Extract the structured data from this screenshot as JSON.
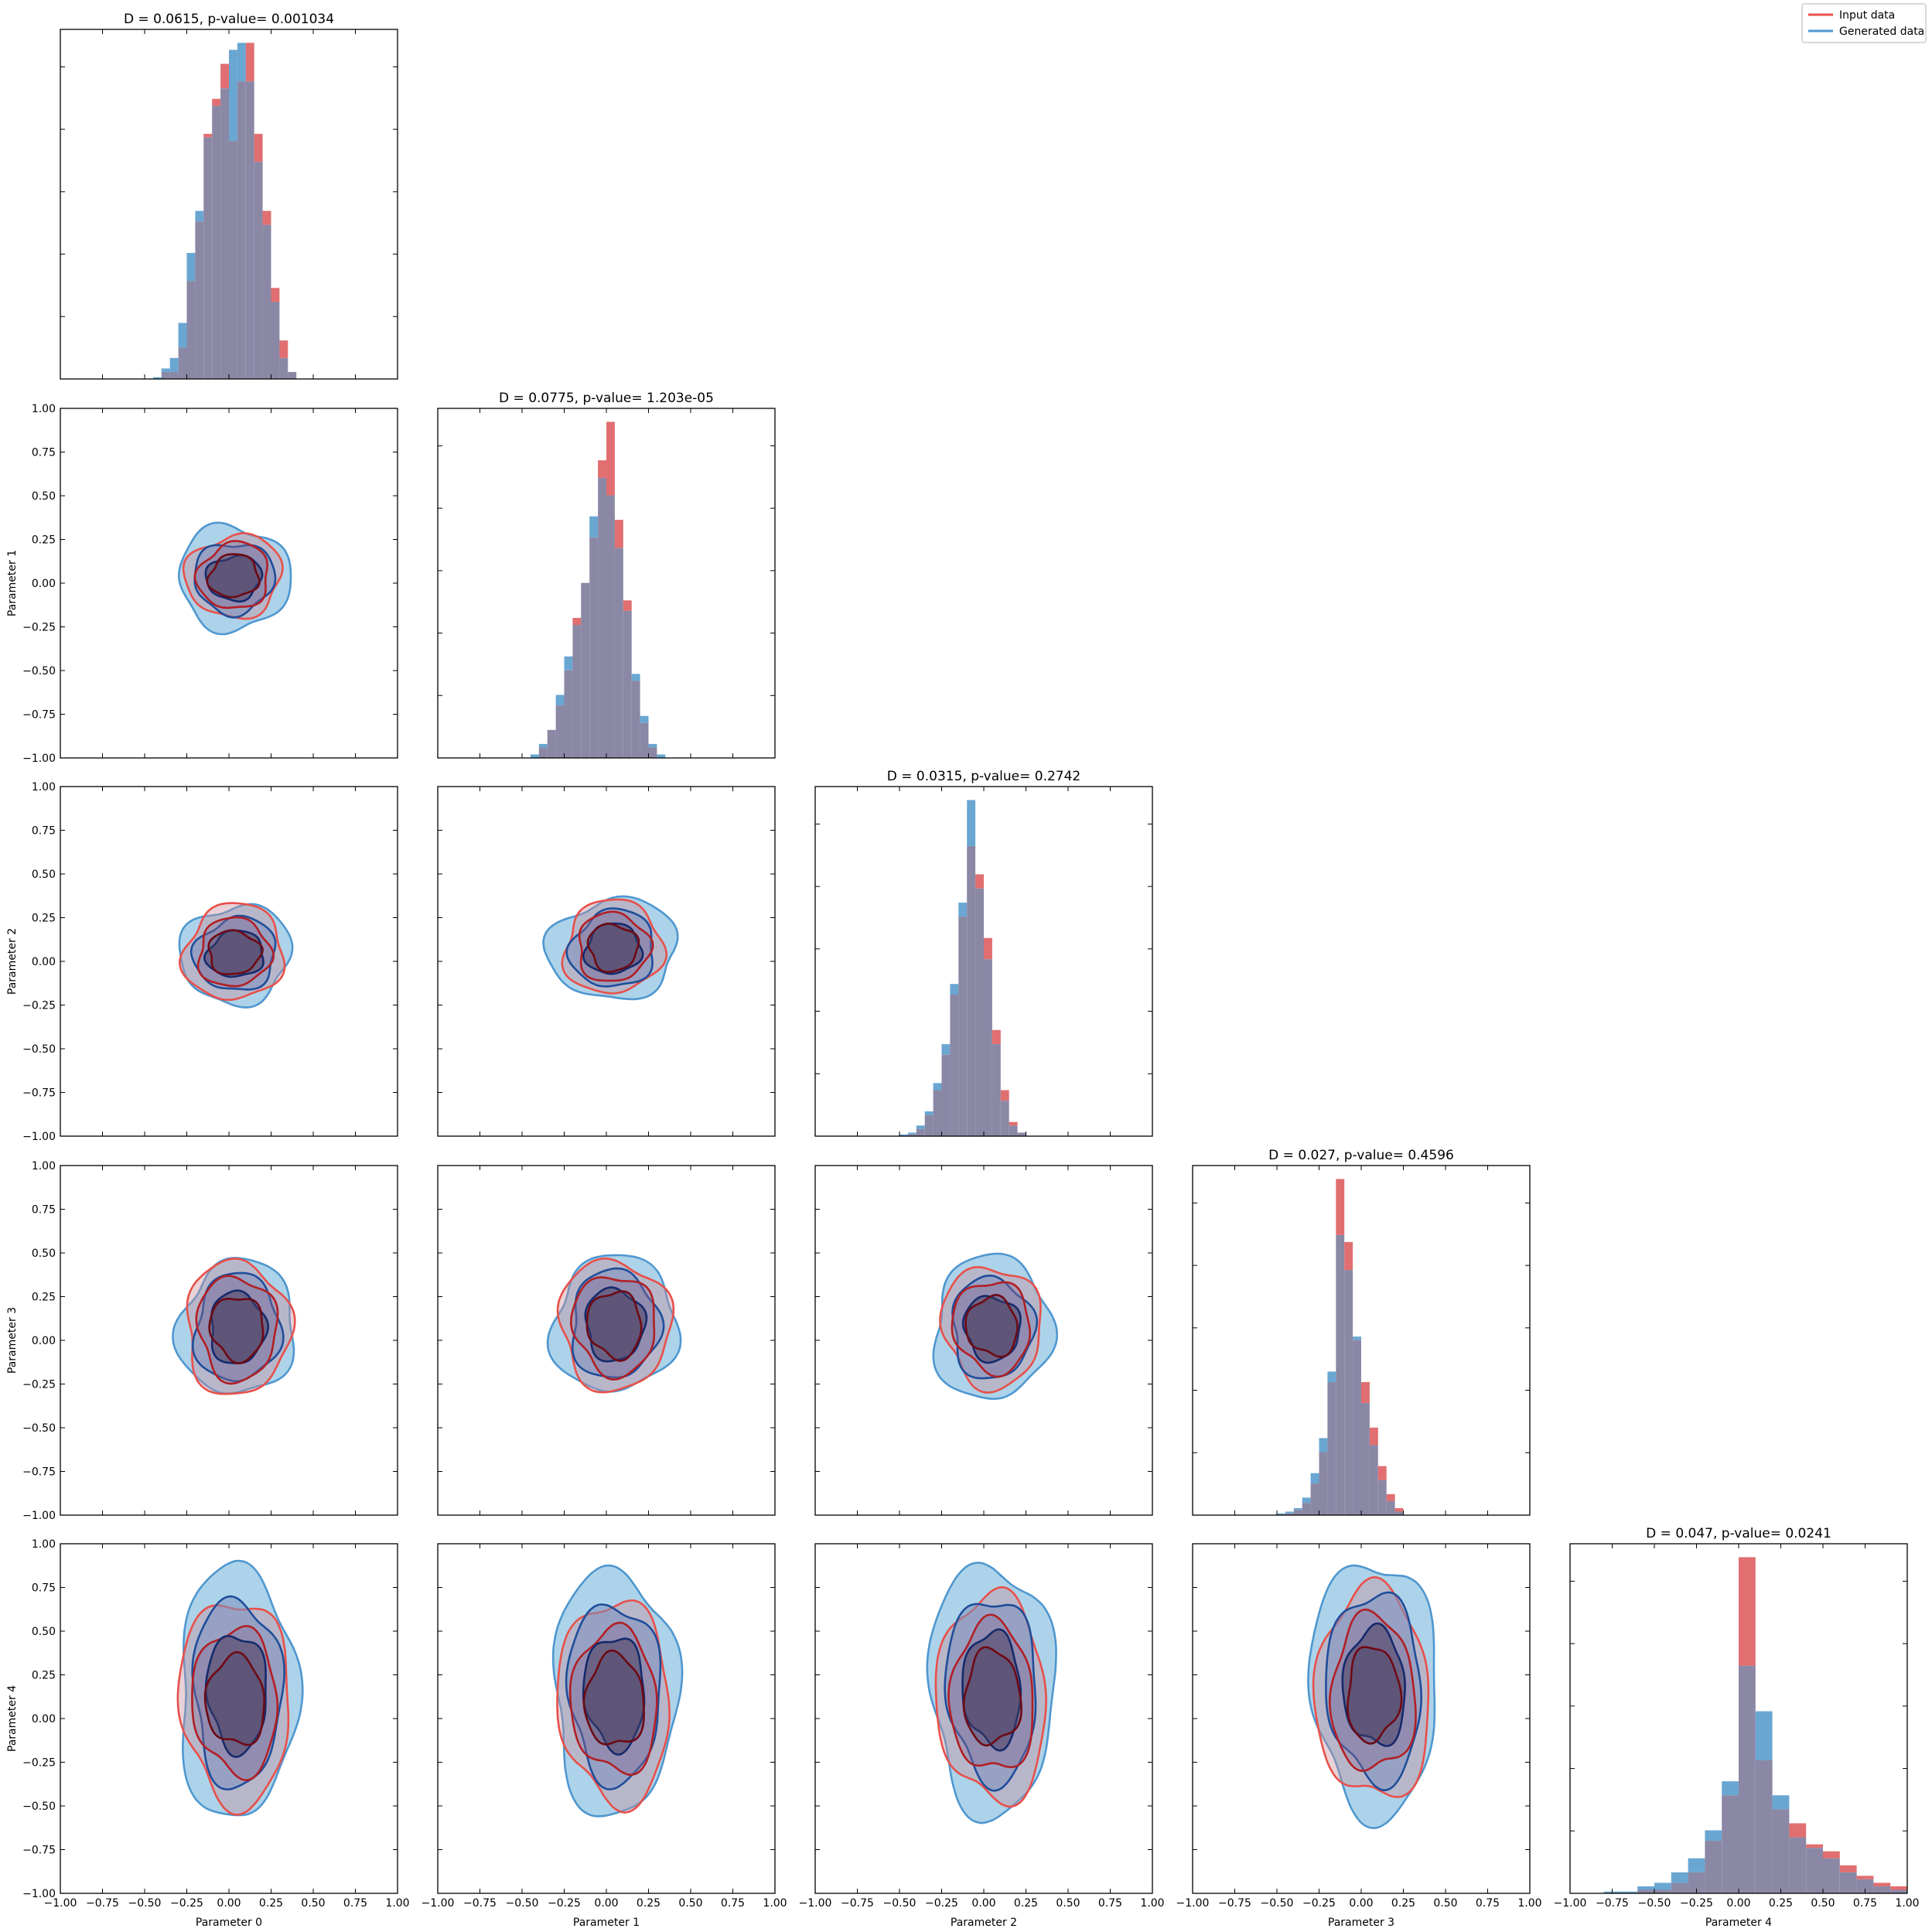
{
  "legend": {
    "entries": [
      {
        "label": "Input data",
        "color": "#e8504a"
      },
      {
        "label": "Generated data",
        "color": "#4f97cf"
      }
    ],
    "placement": "top-right"
  },
  "colors": {
    "input_hist": "#e16e70",
    "generated_hist": "#6aa6d2",
    "overlap": "#8a88a5",
    "input_line_outer": "#e8504a",
    "input_line_inner": "#b21f24",
    "input_line_core": "#6e0a14",
    "gen_fill": "#6aaed8",
    "gen_line": "#4f97cf",
    "gen_line_inner": "#1f4d9a",
    "gen_line_core": "#152a6b",
    "core_fill": "#4a4165"
  },
  "axes": {
    "ticks": [
      "−1.00",
      "−0.75",
      "−0.50",
      "−0.25",
      "0.00",
      "0.25",
      "0.50",
      "0.75",
      "1.00"
    ],
    "tick_values": [
      -1.0,
      -0.75,
      -0.5,
      -0.25,
      0.0,
      0.25,
      0.5,
      0.75,
      1.0
    ],
    "range": [
      -1.0,
      1.0
    ],
    "x_labels": [
      "Parameter 0",
      "Parameter 1",
      "Parameter 2",
      "Parameter 3",
      "Parameter 4"
    ],
    "y_labels": [
      "Parameter 1",
      "Parameter 2",
      "Parameter 3",
      "Parameter 4"
    ]
  },
  "chart_data": [
    {
      "type": "bar",
      "panel": "diag-0",
      "title": "D = 0.0615, p-value= 0.001034",
      "bin_start": -0.5,
      "bin_width": 0.05,
      "series": [
        {
          "name": "Input data",
          "values": [
            0.0,
            0.0,
            0.2,
            0.2,
            0.9,
            2.8,
            4.5,
            7.0,
            8.0,
            9.0,
            6.8,
            8.5,
            9.6,
            7.0,
            4.8,
            2.6,
            1.1,
            0.2,
            0.0,
            0.0
          ]
        },
        {
          "name": "Generated data",
          "values": [
            0.0,
            0.05,
            0.3,
            0.6,
            1.6,
            3.6,
            4.8,
            6.9,
            7.8,
            8.3,
            9.4,
            9.6,
            8.5,
            6.2,
            4.4,
            2.2,
            0.6,
            0.2,
            0.0,
            0.0
          ]
        }
      ]
    },
    {
      "type": "bar",
      "panel": "diag-1",
      "title": "D = 0.0775, p-value= 1.203e-05",
      "bin_start": -0.5,
      "bin_width": 0.05,
      "series": [
        {
          "name": "Input data",
          "values": [
            0.0,
            0.0,
            0.3,
            0.8,
            1.5,
            2.5,
            4.0,
            5.0,
            6.3,
            8.5,
            9.6,
            6.8,
            4.5,
            2.2,
            1.0,
            0.3,
            0.0,
            0.0,
            0.0,
            0.0
          ]
        },
        {
          "name": "Generated data",
          "values": [
            0.0,
            0.1,
            0.4,
            0.8,
            1.8,
            2.9,
            3.8,
            5.0,
            6.9,
            8.0,
            7.5,
            6.0,
            4.2,
            2.4,
            1.2,
            0.4,
            0.1,
            0.0,
            0.0,
            0.0
          ]
        }
      ]
    },
    {
      "type": "bar",
      "panel": "diag-2",
      "title": "D = 0.0315, p-value= 0.2742",
      "bin_start": -0.5,
      "bin_width": 0.05,
      "series": [
        {
          "name": "Input data",
          "values": [
            0.0,
            0.05,
            0.2,
            0.6,
            1.3,
            2.3,
            4.0,
            6.2,
            8.2,
            7.4,
            5.6,
            3.0,
            1.3,
            0.4,
            0.1,
            0.0,
            0.0,
            0.0,
            0.0,
            0.0
          ]
        },
        {
          "name": "Generated data",
          "values": [
            0.05,
            0.1,
            0.3,
            0.7,
            1.5,
            2.6,
            4.3,
            6.6,
            9.5,
            7.0,
            5.0,
            2.6,
            1.0,
            0.3,
            0.1,
            0.0,
            0.0,
            0.0,
            0.0,
            0.0
          ]
        }
      ]
    },
    {
      "type": "bar",
      "panel": "diag-3",
      "title": "D = 0.027, p-value= 0.4596",
      "bin_start": -0.5,
      "bin_width": 0.05,
      "series": [
        {
          "name": "Input data",
          "values": [
            0.0,
            0.05,
            0.15,
            0.35,
            0.9,
            1.8,
            3.8,
            9.6,
            7.8,
            5.0,
            3.8,
            2.5,
            1.4,
            0.6,
            0.2,
            0.0,
            0.0,
            0.0,
            0.0,
            0.0
          ]
        },
        {
          "name": "Generated data",
          "values": [
            0.05,
            0.1,
            0.2,
            0.5,
            1.2,
            2.2,
            4.1,
            8.0,
            7.0,
            5.1,
            3.2,
            2.0,
            1.0,
            0.4,
            0.1,
            0.0,
            0.0,
            0.0,
            0.0,
            0.0
          ]
        }
      ]
    },
    {
      "type": "bar",
      "panel": "diag-4",
      "title": "D = 0.047, p-value= 0.0241",
      "bin_start": -1.0,
      "bin_width": 0.1,
      "series": [
        {
          "name": "Input data",
          "values": [
            0.0,
            0.0,
            0.0,
            0.0,
            0.1,
            0.1,
            0.3,
            0.6,
            1.5,
            2.8,
            9.6,
            3.8,
            2.4,
            2.0,
            1.4,
            1.2,
            0.8,
            0.5,
            0.3,
            0.2
          ]
        },
        {
          "name": "Generated data",
          "values": [
            0.0,
            0.0,
            0.05,
            0.05,
            0.2,
            0.3,
            0.6,
            1.0,
            1.8,
            3.2,
            6.5,
            5.2,
            2.8,
            1.6,
            1.3,
            1.0,
            0.6,
            0.4,
            0.2,
            0.1
          ]
        }
      ]
    },
    {
      "type": "contour",
      "panel": "cell-1-0",
      "x": "Parameter 0",
      "y": "Parameter 1",
      "input": {
        "center": [
          0.03,
          0.04
        ],
        "levels": [
          [
            0.28,
            0.24
          ],
          [
            0.21,
            0.19
          ],
          [
            0.15,
            0.12
          ]
        ]
      },
      "generated": {
        "center": [
          0.03,
          0.03
        ],
        "levels": [
          [
            0.32,
            0.31
          ],
          [
            0.23,
            0.21
          ],
          [
            0.16,
            0.13
          ]
        ]
      }
    },
    {
      "type": "contour",
      "panel": "cell-2-0",
      "x": "Parameter 0",
      "y": "Parameter 2",
      "input": {
        "center": [
          0.03,
          0.05
        ],
        "levels": [
          [
            0.3,
            0.27
          ],
          [
            0.22,
            0.19
          ],
          [
            0.16,
            0.12
          ]
        ]
      },
      "generated": {
        "center": [
          0.04,
          0.04
        ],
        "levels": [
          [
            0.32,
            0.29
          ],
          [
            0.24,
            0.21
          ],
          [
            0.17,
            0.13
          ]
        ]
      }
    },
    {
      "type": "contour",
      "panel": "cell-3-0",
      "x": "Parameter 0",
      "y": "Parameter 3",
      "input": {
        "center": [
          0.05,
          0.07
        ],
        "levels": [
          [
            0.32,
            0.37
          ],
          [
            0.24,
            0.29
          ],
          [
            0.16,
            0.18
          ]
        ]
      },
      "generated": {
        "center": [
          0.05,
          0.07
        ],
        "levels": [
          [
            0.35,
            0.38
          ],
          [
            0.26,
            0.3
          ],
          [
            0.17,
            0.2
          ]
        ]
      }
    },
    {
      "type": "contour",
      "panel": "cell-4-0",
      "x": "Parameter 0",
      "y": "Parameter 4",
      "input": {
        "center": [
          0.04,
          0.1
        ],
        "levels": [
          [
            0.33,
            0.58
          ],
          [
            0.25,
            0.42
          ],
          [
            0.17,
            0.26
          ]
        ]
      },
      "generated": {
        "center": [
          0.05,
          0.15
        ],
        "levels": [
          [
            0.36,
            0.7
          ],
          [
            0.27,
            0.52
          ],
          [
            0.18,
            0.33
          ]
        ]
      }
    },
    {
      "type": "contour",
      "panel": "cell-2-1",
      "x": "Parameter 1",
      "y": "Parameter 2",
      "input": {
        "center": [
          0.04,
          0.08
        ],
        "levels": [
          [
            0.3,
            0.26
          ],
          [
            0.22,
            0.19
          ],
          [
            0.15,
            0.13
          ]
        ]
      },
      "generated": {
        "center": [
          0.04,
          0.07
        ],
        "levels": [
          [
            0.38,
            0.29
          ],
          [
            0.25,
            0.22
          ],
          [
            0.17,
            0.14
          ]
        ]
      }
    },
    {
      "type": "contour",
      "panel": "cell-3-1",
      "x": "Parameter 1",
      "y": "Parameter 3",
      "input": {
        "center": [
          0.05,
          0.09
        ],
        "levels": [
          [
            0.34,
            0.36
          ],
          [
            0.25,
            0.28
          ],
          [
            0.16,
            0.19
          ]
        ]
      },
      "generated": {
        "center": [
          0.05,
          0.09
        ],
        "levels": [
          [
            0.38,
            0.38
          ],
          [
            0.27,
            0.3
          ],
          [
            0.18,
            0.2
          ]
        ]
      }
    },
    {
      "type": "contour",
      "panel": "cell-4-1",
      "x": "Parameter 1",
      "y": "Parameter 4",
      "input": {
        "center": [
          0.05,
          0.1
        ],
        "levels": [
          [
            0.33,
            0.58
          ],
          [
            0.25,
            0.42
          ],
          [
            0.17,
            0.27
          ]
        ]
      },
      "generated": {
        "center": [
          0.05,
          0.15
        ],
        "levels": [
          [
            0.38,
            0.68
          ],
          [
            0.28,
            0.5
          ],
          [
            0.18,
            0.32
          ]
        ]
      }
    },
    {
      "type": "contour",
      "panel": "cell-3-2",
      "x": "Parameter 2",
      "y": "Parameter 3",
      "input": {
        "center": [
          0.05,
          0.08
        ],
        "levels": [
          [
            0.3,
            0.34
          ],
          [
            0.23,
            0.26
          ],
          [
            0.15,
            0.17
          ]
        ]
      },
      "generated": {
        "center": [
          0.05,
          0.07
        ],
        "levels": [
          [
            0.36,
            0.4
          ],
          [
            0.25,
            0.28
          ],
          [
            0.17,
            0.18
          ]
        ]
      }
    },
    {
      "type": "contour",
      "panel": "cell-4-2",
      "x": "Parameter 2",
      "y": "Parameter 4",
      "input": {
        "center": [
          0.05,
          0.12
        ],
        "levels": [
          [
            0.32,
            0.6
          ],
          [
            0.24,
            0.44
          ],
          [
            0.16,
            0.28
          ]
        ]
      },
      "generated": {
        "center": [
          0.05,
          0.17
        ],
        "levels": [
          [
            0.38,
            0.7
          ],
          [
            0.27,
            0.52
          ],
          [
            0.17,
            0.33
          ]
        ]
      }
    },
    {
      "type": "contour",
      "panel": "cell-4-3",
      "x": "Parameter 3",
      "y": "Parameter 4",
      "input": {
        "center": [
          0.07,
          0.14
        ],
        "levels": [
          [
            0.33,
            0.62
          ],
          [
            0.24,
            0.46
          ],
          [
            0.15,
            0.28
          ]
        ]
      },
      "generated": {
        "center": [
          0.08,
          0.18
        ],
        "levels": [
          [
            0.38,
            0.72
          ],
          [
            0.28,
            0.54
          ],
          [
            0.18,
            0.34
          ]
        ]
      }
    }
  ]
}
